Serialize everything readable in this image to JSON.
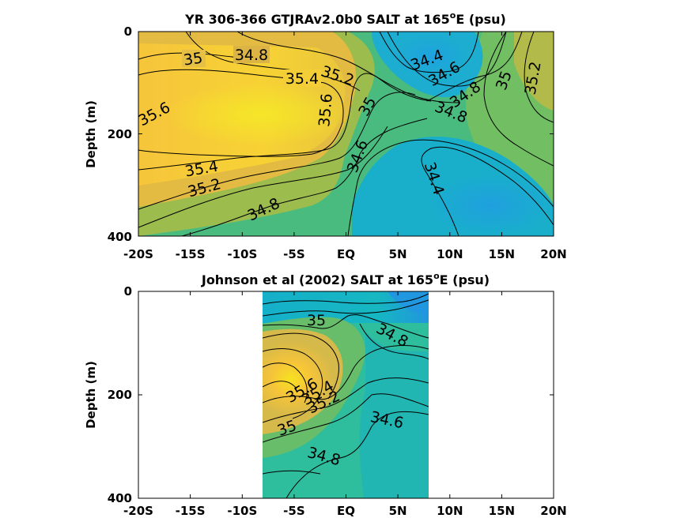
{
  "chart_data": [
    {
      "type": "contour",
      "title": "YR 306-366 GTJRAv2.0b0 SALT at 165",
      "title_sup": "o",
      "title_suffix": "E (psu)",
      "xlabel": "",
      "ylabel": "Depth (m)",
      "x_ticks": [
        "-20S",
        "-15S",
        "-10S",
        "-5S",
        "EQ",
        "5N",
        "10N",
        "15N",
        "20N"
      ],
      "x_tick_values": [
        -20,
        -15,
        -10,
        -5,
        0,
        5,
        10,
        15,
        20
      ],
      "y_ticks": [
        "0",
        "200",
        "400"
      ],
      "y_tick_values": [
        0,
        200,
        400
      ],
      "xlim": [
        -20,
        20
      ],
      "ylim": [
        0,
        400
      ],
      "y_reversed": true,
      "colormap": "parula",
      "contour_labels": [
        {
          "text": "35",
          "x": -15.5,
          "y": 50
        },
        {
          "text": "34.8",
          "x": -9,
          "y": 45
        },
        {
          "text": "35.4",
          "x": -5.2,
          "y": 92
        },
        {
          "text": "35.2",
          "x": -0.8,
          "y": 85
        },
        {
          "text": "35.6",
          "x": -17.5,
          "y": 152
        },
        {
          "text": "35.6",
          "x": -1.8,
          "y": 155
        },
        {
          "text": "35",
          "x": 2.5,
          "y": 140
        },
        {
          "text": "34.4",
          "x": 6.8,
          "y": 55
        },
        {
          "text": "34.6",
          "x": 9,
          "y": 82
        },
        {
          "text": "34.8",
          "x": 11.6,
          "y": 110
        },
        {
          "text": "35",
          "x": 15,
          "y": 90
        },
        {
          "text": "35.2",
          "x": 18.5,
          "y": 92
        },
        {
          "text": "34.8",
          "x": 9.8,
          "y": 160
        },
        {
          "text": "35.4",
          "x": -14.5,
          "y": 262
        },
        {
          "text": "35.2",
          "x": -14,
          "y": 302
        },
        {
          "text": "34.6",
          "x": 1.5,
          "y": 250
        },
        {
          "text": "34.4",
          "x": 7.2,
          "y": 290
        },
        {
          "text": "34.8",
          "x": -6.5,
          "y": 350
        }
      ]
    },
    {
      "type": "contour",
      "title": "Johnson et al (2002) SALT at 165",
      "title_sup": "o",
      "title_suffix": "E (psu)",
      "xlabel": "",
      "ylabel": "Depth (m)",
      "x_ticks": [
        "-20S",
        "-15S",
        "-10S",
        "-5S",
        "EQ",
        "5N",
        "10N",
        "15N",
        "20N"
      ],
      "x_tick_values": [
        -20,
        -15,
        -10,
        -5,
        0,
        5,
        10,
        15,
        20
      ],
      "y_ticks": [
        "0",
        "200",
        "400"
      ],
      "y_tick_values": [
        0,
        200,
        400
      ],
      "xlim": [
        -20,
        20
      ],
      "ylim": [
        0,
        400
      ],
      "y_reversed": true,
      "data_x_range": [
        -8,
        8
      ],
      "colormap": "parula",
      "contour_labels": [
        {
          "text": "35",
          "x": -2.8,
          "y": 55
        },
        {
          "text": "34.8",
          "x": 4,
          "y": 85
        },
        {
          "text": "35.6",
          "x": -4,
          "y": 185
        },
        {
          "text": "35.4",
          "x": -2,
          "y": 195
        },
        {
          "text": "35.2",
          "x": -2.3,
          "y": 210
        },
        {
          "text": "35",
          "x": -5.5,
          "y": 265
        },
        {
          "text": "34.6",
          "x": 3.8,
          "y": 252
        },
        {
          "text": "34.8",
          "x": -1.8,
          "y": 315
        }
      ]
    }
  ]
}
